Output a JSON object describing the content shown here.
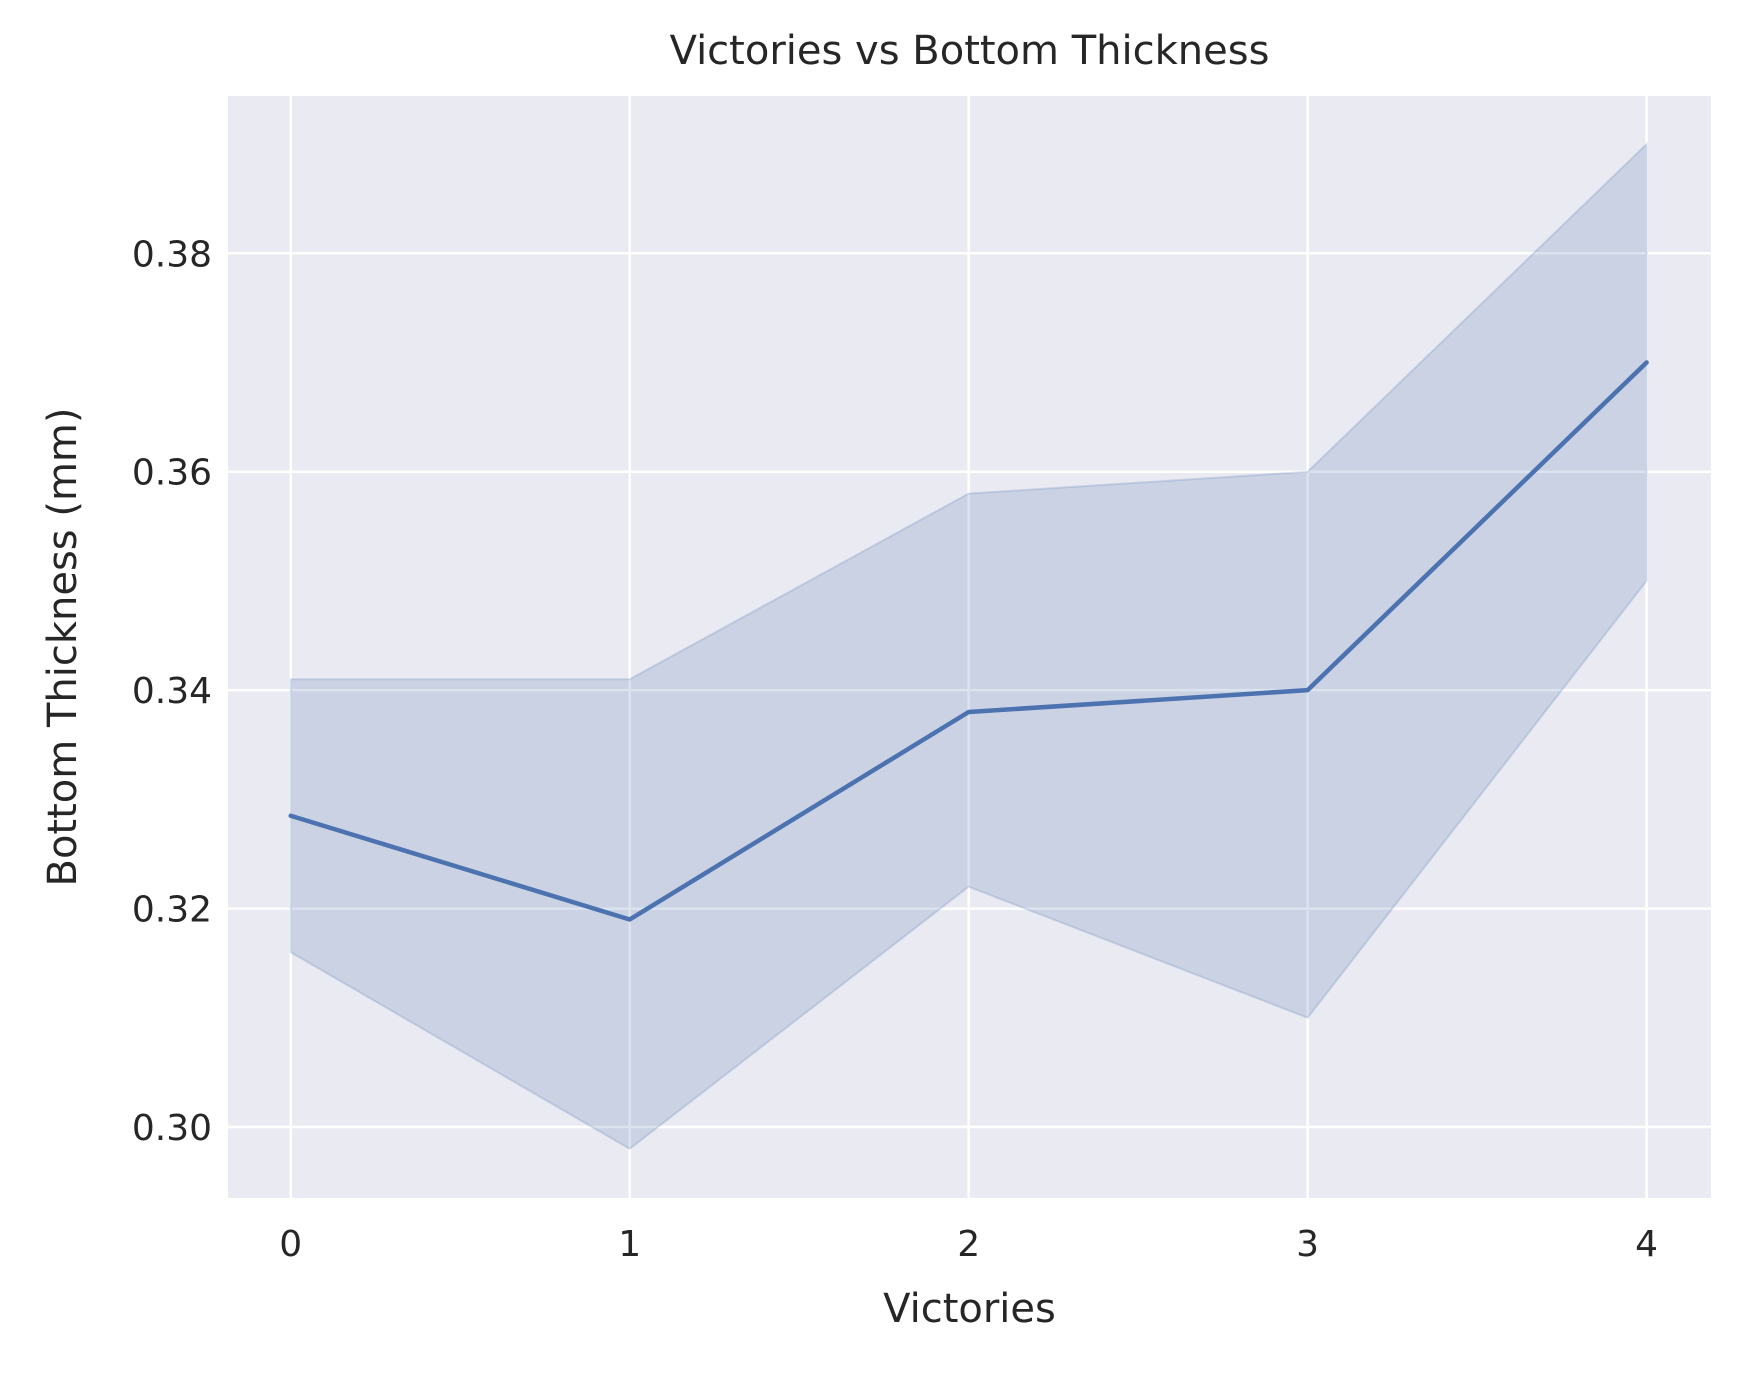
{
  "chart_data": {
    "type": "line",
    "title": "Victories vs Bottom Thickness",
    "xlabel": "Victories",
    "ylabel": "Bottom Thickness (mm)",
    "x": [
      0,
      1,
      2,
      3,
      4
    ],
    "x_ticks": [
      "0",
      "1",
      "2",
      "3",
      "4"
    ],
    "y_ticks": [
      "0.30",
      "0.32",
      "0.34",
      "0.36",
      "0.38"
    ],
    "xlim": [
      -0.185,
      4.19
    ],
    "ylim": [
      0.2935,
      0.3944
    ],
    "grid": true,
    "series": [
      {
        "values": [
          0.3285,
          0.319,
          0.338,
          0.34,
          0.37
        ],
        "ci_lower": [
          0.316,
          0.298,
          0.322,
          0.31,
          0.35
        ],
        "ci_upper": [
          0.341,
          0.341,
          0.358,
          0.36,
          0.39
        ],
        "color": "#4c72b0"
      }
    ]
  }
}
